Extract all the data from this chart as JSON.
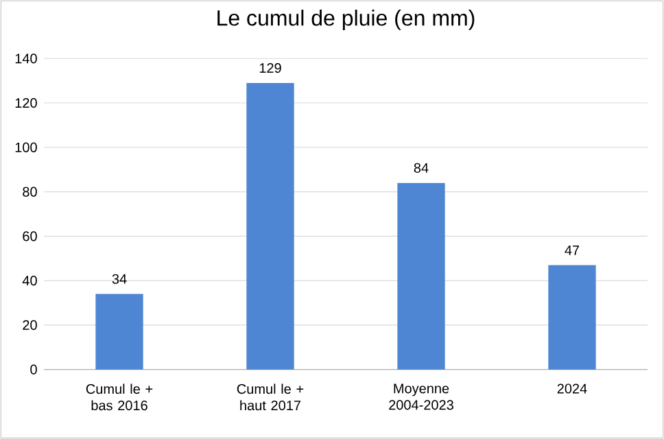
{
  "chart_data": {
    "type": "bar",
    "title": "Le cumul de pluie (en mm)",
    "categories": [
      "Cumul le + bas 2016",
      "Cumul le + haut 2017",
      "Moyenne 2004-2023",
      "2024"
    ],
    "values": [
      34,
      129,
      84,
      47
    ],
    "color": "#4f86d3",
    "ylim": [
      0,
      140
    ],
    "yticks": [
      0,
      20,
      40,
      60,
      80,
      100,
      120,
      140
    ],
    "grid": "y",
    "data_labels": true
  }
}
